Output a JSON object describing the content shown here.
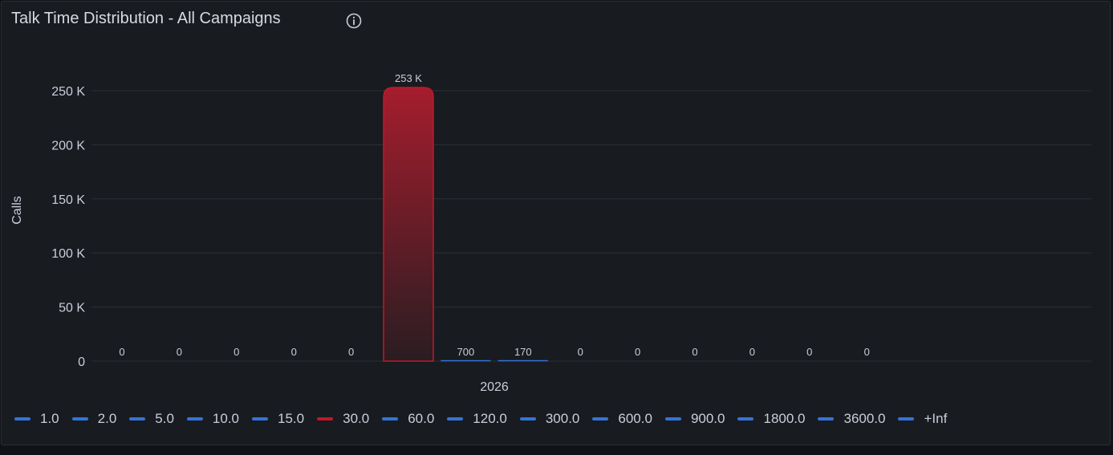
{
  "panel": {
    "title": "Talk Time Distribution - All Campaigns",
    "info_icon": "info-icon"
  },
  "colors": {
    "panel_bg": "#181b1f",
    "grid": "#2c3036",
    "default_series": "#3274d9",
    "highlight_series": "#c4162a",
    "highlight_bar_top": "#a51d2d",
    "text": "#ccccdc"
  },
  "chart_data": {
    "type": "bar",
    "title": "Talk Time Distribution - All Campaigns",
    "ylabel": "Calls",
    "xlabel": "",
    "x_tick": "2026",
    "ylim": [
      0,
      250000
    ],
    "y_ticks": [
      0,
      50000,
      100000,
      150000,
      200000,
      250000
    ],
    "y_tick_labels": [
      "0",
      "50 K",
      "100 K",
      "150 K",
      "200 K",
      "250 K"
    ],
    "grid": true,
    "legend_position": "bottom-left",
    "series": [
      {
        "name": "1.0",
        "value": 0,
        "label": "0",
        "color": "#3274d9"
      },
      {
        "name": "2.0",
        "value": 0,
        "label": "0",
        "color": "#3274d9"
      },
      {
        "name": "5.0",
        "value": 0,
        "label": "0",
        "color": "#3274d9"
      },
      {
        "name": "10.0",
        "value": 0,
        "label": "0",
        "color": "#3274d9"
      },
      {
        "name": "15.0",
        "value": 0,
        "label": "0",
        "color": "#3274d9"
      },
      {
        "name": "30.0",
        "value": 253000,
        "label": "253 K",
        "color": "#c4162a"
      },
      {
        "name": "60.0",
        "value": 700,
        "label": "700",
        "color": "#3274d9"
      },
      {
        "name": "120.0",
        "value": 170,
        "label": "170",
        "color": "#3274d9"
      },
      {
        "name": "300.0",
        "value": 0,
        "label": "0",
        "color": "#3274d9"
      },
      {
        "name": "600.0",
        "value": 0,
        "label": "0",
        "color": "#3274d9"
      },
      {
        "name": "900.0",
        "value": 0,
        "label": "0",
        "color": "#3274d9"
      },
      {
        "name": "1800.0",
        "value": 0,
        "label": "0",
        "color": "#3274d9"
      },
      {
        "name": "3600.0",
        "value": 0,
        "label": "0",
        "color": "#3274d9"
      },
      {
        "name": "+Inf",
        "value": 0,
        "label": "0",
        "color": "#3274d9"
      }
    ]
  }
}
